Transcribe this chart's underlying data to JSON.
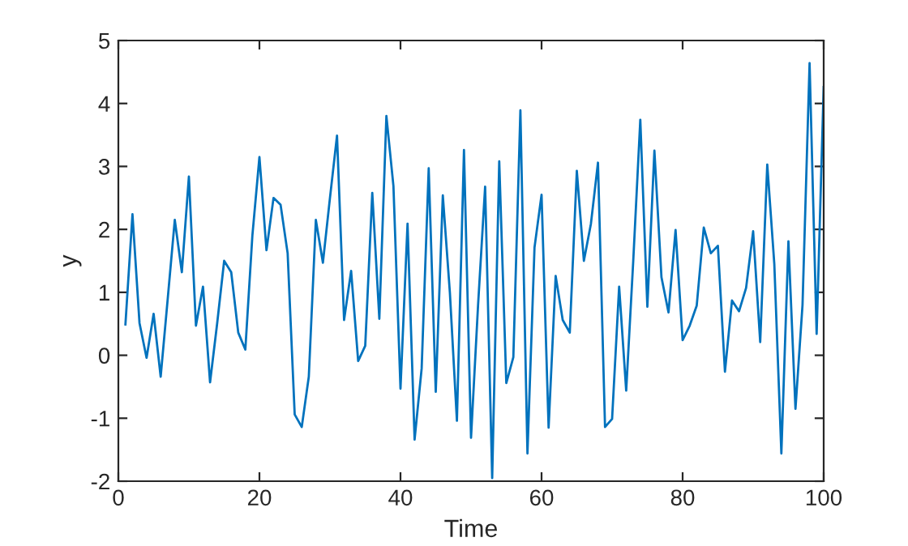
{
  "chart_data": {
    "type": "line",
    "xlabel": "Time",
    "ylabel": "y",
    "x": [
      1,
      2,
      3,
      4,
      5,
      6,
      7,
      8,
      9,
      10,
      11,
      12,
      13,
      14,
      15,
      16,
      17,
      18,
      19,
      20,
      21,
      22,
      23,
      24,
      25,
      26,
      27,
      28,
      29,
      30,
      31,
      32,
      33,
      34,
      35,
      36,
      37,
      38,
      39,
      40,
      41,
      42,
      43,
      44,
      45,
      46,
      47,
      48,
      49,
      50,
      51,
      52,
      53,
      54,
      55,
      56,
      57,
      58,
      59,
      60,
      61,
      62,
      63,
      64,
      65,
      66,
      67,
      68,
      69,
      70,
      71,
      72,
      73,
      74,
      75,
      76,
      77,
      78,
      79,
      80,
      81,
      82,
      83,
      84,
      85,
      86,
      87,
      88,
      89,
      90,
      91,
      92,
      93,
      94,
      95,
      96,
      97,
      98,
      99,
      100
    ],
    "series": [
      {
        "color": "#0072bd",
        "values": [
          0.49,
          2.24,
          0.51,
          -0.04,
          0.66,
          -0.34,
          0.9,
          2.15,
          1.32,
          2.84,
          0.47,
          1.09,
          -0.43,
          0.5,
          1.5,
          1.32,
          0.36,
          0.09,
          1.9,
          3.15,
          1.67,
          2.5,
          2.39,
          1.62,
          -0.94,
          -1.14,
          -0.34,
          2.15,
          1.47,
          2.5,
          3.49,
          0.56,
          1.34,
          -0.09,
          0.15,
          2.58,
          0.58,
          3.8,
          2.69,
          -0.53,
          2.09,
          -1.34,
          -0.21,
          2.97,
          -0.58,
          2.54,
          1.0,
          -1.04,
          3.26,
          -1.31,
          0.8,
          2.68,
          -1.95,
          3.08,
          -0.44,
          -0.03,
          3.89,
          -1.56,
          1.71,
          2.55,
          -1.15,
          1.26,
          0.56,
          0.36,
          2.93,
          1.5,
          2.09,
          3.06,
          -1.14,
          -1.01,
          1.09,
          -0.56,
          1.5,
          3.74,
          0.77,
          3.25,
          1.24,
          0.68,
          1.99,
          0.24,
          0.47,
          0.79,
          2.03,
          1.62,
          1.74,
          -0.26,
          0.87,
          0.7,
          1.07,
          1.97,
          0.21,
          3.03,
          1.45,
          -1.56,
          1.81,
          -0.85,
          0.8,
          4.64,
          0.34,
          4.26
        ]
      }
    ],
    "xlim": [
      0,
      100
    ],
    "xticks": [
      0,
      20,
      40,
      60,
      80,
      100
    ],
    "ylim": [
      -2,
      5
    ],
    "yticks": [
      -2,
      -1,
      0,
      1,
      2,
      3,
      4,
      5
    ],
    "grid": false,
    "marker": "none",
    "line_style": "solid"
  }
}
